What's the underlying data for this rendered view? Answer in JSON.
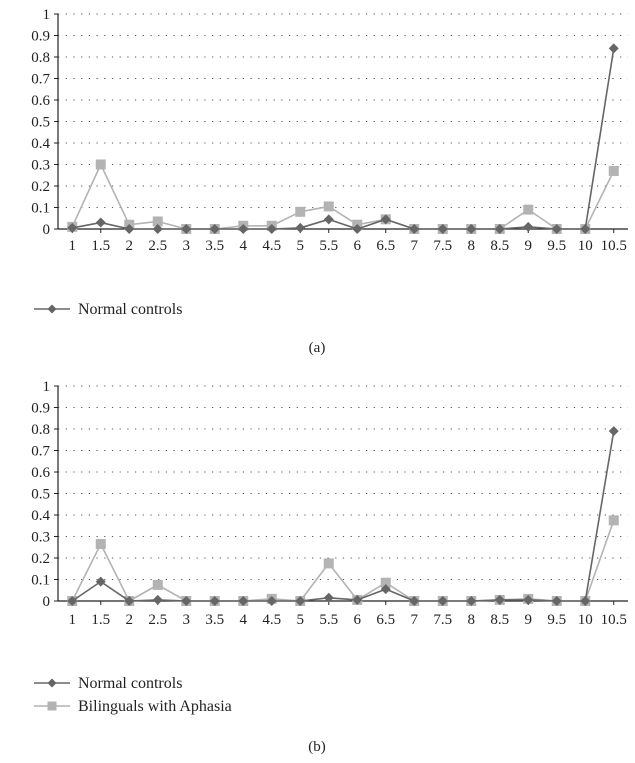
{
  "chart_data": [
    {
      "type": "line",
      "caption": "(a)",
      "categories": [
        "1",
        "1.5",
        "2",
        "2.5",
        "3",
        "3.5",
        "4",
        "4.5",
        "5",
        "5.5",
        "6",
        "6.5",
        "7",
        "7.5",
        "8",
        "8.5",
        "9",
        "9.5",
        "10",
        "10.5"
      ],
      "ylim": [
        0,
        1
      ],
      "yticks": [
        "0",
        "0.1",
        "0.2",
        "0.3",
        "0.4",
        "0.5",
        "0.6",
        "0.7",
        "0.8",
        "0.9",
        "1"
      ],
      "grid": true,
      "legend": [
        "Normal controls"
      ],
      "series": [
        {
          "name": "Normal controls",
          "color": "#666666",
          "marker": "diamond",
          "values": [
            0.005,
            0.03,
            0,
            0,
            0,
            0,
            0,
            0,
            0.005,
            0.045,
            0,
            0.045,
            0,
            0,
            0,
            0,
            0.01,
            0,
            0,
            0.84
          ]
        },
        {
          "color": "#b3b3b3",
          "marker": "square",
          "values": [
            0.01,
            0.3,
            0.02,
            0.035,
            0,
            0,
            0.015,
            0.015,
            0.08,
            0.105,
            0.02,
            0.045,
            0,
            0,
            0,
            0,
            0.09,
            0,
            0,
            0.27
          ]
        }
      ]
    },
    {
      "type": "line",
      "caption": "(b)",
      "categories": [
        "1",
        "1.5",
        "2",
        "2.5",
        "3",
        "3.5",
        "4",
        "4.5",
        "5",
        "5.5",
        "6",
        "6.5",
        "7",
        "7.5",
        "8",
        "8.5",
        "9",
        "9.5",
        "10",
        "10.5"
      ],
      "ylim": [
        0,
        1
      ],
      "yticks": [
        "0",
        "0.1",
        "0.2",
        "0.3",
        "0.4",
        "0.5",
        "0.6",
        "0.7",
        "0.8",
        "0.9",
        "1"
      ],
      "grid": true,
      "legend": [
        "Normal controls",
        "Bilinguals with Aphasia"
      ],
      "series": [
        {
          "name": "Normal controls",
          "color": "#666666",
          "marker": "diamond",
          "values": [
            0,
            0.09,
            0,
            0.005,
            0,
            0,
            0,
            0,
            0,
            0.015,
            0.005,
            0.055,
            0,
            0,
            0,
            0.005,
            0.005,
            0,
            0,
            0.79
          ]
        },
        {
          "name": "Bilinguals with Aphasia",
          "color": "#b3b3b3",
          "marker": "square",
          "values": [
            0,
            0.265,
            0,
            0.075,
            0,
            0,
            0,
            0.01,
            0,
            0.175,
            0.005,
            0.085,
            0,
            0,
            0,
            0.005,
            0.01,
            0,
            0,
            0.375
          ]
        }
      ]
    }
  ]
}
